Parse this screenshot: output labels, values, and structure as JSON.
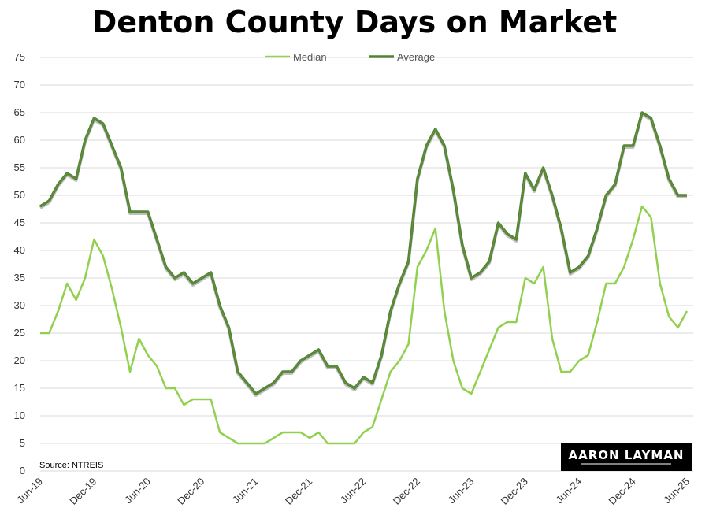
{
  "chart_data": {
    "type": "line",
    "title": "Denton County Days on Market",
    "xlabel": "",
    "ylabel": "",
    "ylim": [
      0,
      75
    ],
    "yticks": [
      0,
      5,
      10,
      15,
      20,
      25,
      30,
      35,
      40,
      45,
      50,
      55,
      60,
      65,
      70,
      75
    ],
    "grid": true,
    "legend": "top-center",
    "x_tick_labels": [
      "Jun-19",
      "Dec-19",
      "Jun-20",
      "Dec-20",
      "Jun-21",
      "Dec-21",
      "Jun-22",
      "Dec-22",
      "Jun-23",
      "Dec-23",
      "Jun-24",
      "Dec-24",
      "Jun-25"
    ],
    "x": [
      "Jun-19",
      "Jul-19",
      "Aug-19",
      "Sep-19",
      "Oct-19",
      "Nov-19",
      "Dec-19",
      "Jan-20",
      "Feb-20",
      "Mar-20",
      "Apr-20",
      "May-20",
      "Jun-20",
      "Jul-20",
      "Aug-20",
      "Sep-20",
      "Oct-20",
      "Nov-20",
      "Dec-20",
      "Jan-21",
      "Feb-21",
      "Mar-21",
      "Apr-21",
      "May-21",
      "Jun-21",
      "Jul-21",
      "Aug-21",
      "Sep-21",
      "Oct-21",
      "Nov-21",
      "Dec-21",
      "Jan-22",
      "Feb-22",
      "Mar-22",
      "Apr-22",
      "May-22",
      "Jun-22",
      "Jul-22",
      "Aug-22",
      "Sep-22",
      "Oct-22",
      "Nov-22",
      "Dec-22",
      "Jan-23",
      "Feb-23",
      "Mar-23",
      "Apr-23",
      "May-23",
      "Jun-23",
      "Jul-23",
      "Aug-23",
      "Sep-23",
      "Oct-23",
      "Nov-23",
      "Dec-23",
      "Jan-24",
      "Feb-24",
      "Mar-24",
      "Apr-24",
      "May-24",
      "Jun-24",
      "Jul-24",
      "Aug-24",
      "Sep-24",
      "Oct-24",
      "Nov-24",
      "Dec-24",
      "Jan-25",
      "Feb-25",
      "Mar-25",
      "Apr-25",
      "May-25",
      "Jun-25"
    ],
    "series": [
      {
        "name": "Median",
        "color": "#92d050",
        "values": [
          25,
          25,
          29,
          34,
          31,
          35,
          42,
          39,
          33,
          26,
          18,
          24,
          21,
          19,
          15,
          15,
          12,
          13,
          13,
          13,
          7,
          6,
          5,
          5,
          5,
          5,
          6,
          7,
          7,
          7,
          6,
          7,
          5,
          5,
          5,
          5,
          7,
          8,
          13,
          18,
          20,
          23,
          37,
          40,
          44,
          29,
          20,
          15,
          14,
          18,
          22,
          26,
          27,
          27,
          35,
          34,
          37,
          24,
          18,
          18,
          20,
          21,
          27,
          34,
          34,
          37,
          42,
          48,
          46,
          34,
          28,
          26,
          29
        ]
      },
      {
        "name": "Average",
        "color": "#548235",
        "values": [
          48,
          49,
          52,
          54,
          53,
          60,
          64,
          63,
          59,
          55,
          47,
          47,
          47,
          42,
          37,
          35,
          36,
          34,
          35,
          36,
          30,
          26,
          18,
          16,
          14,
          15,
          16,
          18,
          18,
          20,
          21,
          22,
          19,
          19,
          16,
          15,
          17,
          16,
          21,
          29,
          34,
          38,
          53,
          59,
          62,
          59,
          51,
          41,
          35,
          36,
          38,
          45,
          43,
          42,
          54,
          51,
          55,
          50,
          44,
          36,
          37,
          39,
          44,
          50,
          52,
          59,
          59,
          65,
          64,
          59,
          53,
          50,
          50
        ]
      }
    ],
    "annotations": [
      "Source: NTREIS"
    ]
  },
  "logo": {
    "text": "AARON LAYMAN"
  },
  "colors": {
    "median": "#92d050",
    "average": "#548235",
    "grid": "#d9d9d9",
    "logo_bg": "#000000"
  }
}
